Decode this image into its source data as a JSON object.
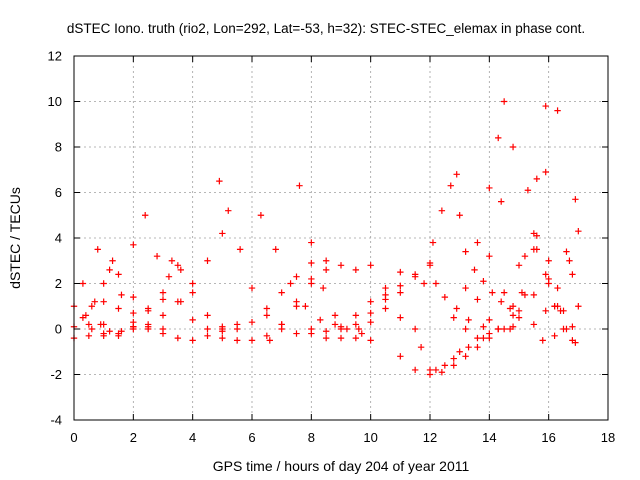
{
  "chart_data": {
    "type": "scatter",
    "title": "dSTEC Iono. truth (rio2, Lon=292, Lat=-53, h=32): STEC-STEC_elemax in phase cont.",
    "xlabel": "GPS time / hours of day 204 of year 2011",
    "ylabel": "dSTEC  / TECUs",
    "xlim": [
      0,
      18
    ],
    "ylim": [
      -4,
      12
    ],
    "xticks": [
      0,
      2,
      4,
      6,
      8,
      10,
      12,
      14,
      16,
      18
    ],
    "yticks": [
      -4,
      -2,
      0,
      2,
      4,
      6,
      8,
      10,
      12
    ],
    "xtick_labels": [
      "0",
      "2",
      "4",
      "6",
      "8",
      "10",
      "12",
      "14",
      "16",
      "18"
    ],
    "ytick_labels": [
      "-4",
      "-2",
      "0",
      "2",
      "4",
      "6",
      "8",
      "10",
      "12"
    ],
    "grid": true,
    "legend": "none",
    "marker": "+",
    "color": "#ff0000",
    "series": [
      {
        "x": [
          0.0,
          0.5,
          1.0,
          1.5,
          2.0
        ],
        "y": [
          -0.4,
          -0.3,
          0.2,
          0.9,
          1.4
        ]
      },
      {
        "x": [
          0.0,
          0.3,
          0.6,
          1.0,
          1.5,
          2.0,
          2.5,
          3.0
        ],
        "y": [
          1.0,
          0.5,
          0.0,
          -0.3,
          -0.2,
          0.3,
          0.9,
          1.3
        ]
      },
      {
        "x": [
          0.3,
          0.6,
          0.9,
          1.2,
          1.6,
          2.0
        ],
        "y": [
          2.0,
          1.0,
          0.2,
          -0.1,
          -0.1,
          0.1
        ]
      },
      {
        "x": [
          0.0,
          0.4,
          0.7,
          1.0,
          1.3
        ],
        "y": [
          0.1,
          0.6,
          1.2,
          2.0,
          3.0
        ]
      },
      {
        "x": [
          0.8,
          1.2,
          1.6,
          2.0,
          2.5,
          3.0
        ],
        "y": [
          3.5,
          2.6,
          1.5,
          0.7,
          0.1,
          0.0
        ]
      },
      {
        "x": [
          0.5,
          1.0,
          1.5,
          2.0,
          2.4
        ],
        "y": [
          0.2,
          1.2,
          2.4,
          3.7,
          5.0
        ]
      },
      {
        "x": [
          1.0,
          1.5,
          2.0,
          2.5,
          3.0,
          3.5
        ],
        "y": [
          -0.2,
          -0.3,
          0.1,
          0.8,
          1.6,
          2.8
        ]
      },
      {
        "x": [
          2.8,
          3.2,
          3.6,
          4.0,
          4.5,
          5.0
        ],
        "y": [
          3.2,
          2.3,
          1.2,
          0.4,
          0.0,
          0.1
        ]
      },
      {
        "x": [
          2.5,
          3.0,
          3.5,
          4.0,
          4.5,
          5.0,
          5.5
        ],
        "y": [
          0.0,
          -0.2,
          -0.4,
          -0.5,
          -0.3,
          -0.1,
          0.2
        ]
      },
      {
        "x": [
          2.0,
          2.5,
          3.0,
          3.5,
          4.0,
          4.5,
          5.0
        ],
        "y": [
          0.0,
          0.2,
          0.6,
          1.2,
          2.0,
          3.0,
          4.2
        ]
      },
      {
        "x": [
          3.3,
          3.6,
          4.0,
          4.5,
          5.0
        ],
        "y": [
          3.0,
          2.6,
          1.6,
          0.6,
          0.0
        ]
      },
      {
        "x": [
          4.9,
          5.2,
          5.6,
          6.0,
          6.5,
          7.0,
          7.5
        ],
        "y": [
          6.5,
          5.2,
          3.5,
          1.8,
          0.6,
          0.0,
          -0.2
        ]
      },
      {
        "x": [
          5.0,
          5.5,
          6.0,
          6.5,
          7.0,
          7.5,
          8.0
        ],
        "y": [
          -0.4,
          -0.5,
          -0.5,
          -0.3,
          0.2,
          1.0,
          2.0
        ]
      },
      {
        "x": [
          5.5,
          6.0,
          6.5,
          7.0,
          7.5,
          8.0,
          8.5
        ],
        "y": [
          0.0,
          0.3,
          0.9,
          1.6,
          2.3,
          2.9,
          3.0
        ]
      },
      {
        "x": [
          6.3,
          6.8,
          7.3,
          7.8,
          8.3,
          8.8
        ],
        "y": [
          5.0,
          3.5,
          2.0,
          1.0,
          0.4,
          0.2
        ]
      },
      {
        "x": [
          7.6,
          8.0,
          8.4,
          8.8,
          9.2,
          9.7
        ],
        "y": [
          6.3,
          3.8,
          1.8,
          0.6,
          0.0,
          -0.2
        ]
      },
      {
        "x": [
          6.6,
          7.0,
          7.5,
          8.0,
          8.5,
          9.0,
          9.5
        ],
        "y": [
          -0.5,
          0.2,
          1.2,
          2.2,
          2.6,
          2.8,
          2.6
        ]
      },
      {
        "x": [
          8.0,
          8.5,
          9.0,
          9.5,
          10.0
        ],
        "y": [
          -0.2,
          -0.4,
          -0.4,
          -0.4,
          -0.5
        ]
      },
      {
        "x": [
          8.0,
          8.5,
          9.0,
          9.5,
          10.0,
          10.5,
          11.0
        ],
        "y": [
          0.0,
          -0.1,
          0.1,
          0.6,
          1.2,
          1.8,
          2.5
        ]
      },
      {
        "x": [
          10.0,
          10.5,
          11.0,
          11.5
        ],
        "y": [
          2.8,
          1.5,
          0.5,
          0.0
        ]
      },
      {
        "x": [
          9.6,
          10.0,
          10.5,
          11.0,
          11.5,
          12.0
        ],
        "y": [
          0.0,
          0.3,
          0.9,
          1.6,
          2.3,
          2.9
        ]
      },
      {
        "x": [
          9.0,
          9.5,
          10.0,
          10.5,
          11.0,
          11.5,
          12.0
        ],
        "y": [
          0.0,
          0.2,
          0.7,
          1.3,
          1.9,
          2.4,
          2.8
        ]
      },
      {
        "x": [
          11.0,
          11.5,
          12.0,
          12.5,
          13.0
        ],
        "y": [
          -1.2,
          -1.8,
          -2.0,
          -1.6,
          -1.0
        ]
      },
      {
        "x": [
          11.7,
          12.0,
          12.4,
          12.8,
          13.2,
          13.6,
          14.0
        ],
        "y": [
          -0.8,
          -1.8,
          -1.9,
          -1.6,
          -1.2,
          -0.8,
          -0.4
        ]
      },
      {
        "x": [
          11.8,
          12.1,
          12.4,
          12.7,
          12.9
        ],
        "y": [
          2.0,
          3.8,
          5.2,
          6.3,
          6.8
        ]
      },
      {
        "x": [
          12.2,
          12.5,
          12.9,
          13.3,
          13.8,
          14.3,
          14.8
        ],
        "y": [
          2.0,
          1.4,
          0.9,
          0.4,
          0.1,
          0.0,
          0.1
        ]
      },
      {
        "x": [
          12.2,
          12.8,
          13.3,
          13.8,
          14.3,
          14.8,
          15.2
        ],
        "y": [
          -1.8,
          -1.3,
          -0.8,
          -0.4,
          0.0,
          0.6,
          1.5
        ]
      },
      {
        "x": [
          13.0,
          13.2,
          13.5,
          13.8,
          14.1,
          14.4,
          14.7,
          15.0
        ],
        "y": [
          5.0,
          3.4,
          2.6,
          2.1,
          1.6,
          1.2,
          0.9,
          0.8
        ]
      },
      {
        "x": [
          12.8,
          13.2,
          13.6,
          14.0,
          14.3,
          14.5
        ],
        "y": [
          0.5,
          1.8,
          3.8,
          6.2,
          8.4,
          10.0
        ]
      },
      {
        "x": [
          13.2,
          13.6,
          14.0,
          14.4,
          14.8
        ],
        "y": [
          0.0,
          1.3,
          3.2,
          5.6,
          8.0
        ]
      },
      {
        "x": [
          13.6,
          14.0,
          14.5,
          15.0,
          15.5
        ],
        "y": [
          -0.4,
          0.4,
          1.6,
          2.8,
          3.5
        ]
      },
      {
        "x": [
          14.0,
          14.5,
          15.0,
          15.5,
          16.0
        ],
        "y": [
          -0.2,
          0.0,
          0.5,
          1.5,
          3.0
        ]
      },
      {
        "x": [
          14.8,
          15.2,
          15.6,
          15.9
        ],
        "y": [
          1.0,
          3.2,
          6.6,
          9.8
        ]
      },
      {
        "x": [
          14.7,
          15.1,
          15.5,
          15.9,
          16.3
        ],
        "y": [
          0.0,
          1.6,
          4.2,
          6.9,
          9.6
        ]
      },
      {
        "x": [
          15.3,
          15.6,
          15.9,
          16.2,
          16.5,
          16.8
        ],
        "y": [
          6.1,
          4.1,
          2.4,
          1.0,
          0.0,
          -0.5
        ]
      },
      {
        "x": [
          15.6,
          16.0,
          16.4,
          16.8,
          17.0
        ],
        "y": [
          3.5,
          2.0,
          0.8,
          0.1,
          1.0
        ]
      },
      {
        "x": [
          15.8,
          16.2,
          16.6,
          16.9
        ],
        "y": [
          -0.5,
          1.0,
          3.4,
          5.7
        ]
      },
      {
        "x": [
          16.0,
          16.3,
          16.6,
          16.9
        ],
        "y": [
          2.2,
          1.0,
          0.0,
          -0.6
        ]
      },
      {
        "x": [
          16.2,
          16.5,
          16.8,
          17.0
        ],
        "y": [
          -0.3,
          0.8,
          2.4,
          4.3
        ]
      },
      {
        "x": [
          15.5,
          15.9,
          16.3,
          16.7
        ],
        "y": [
          0.2,
          0.8,
          1.8,
          3.0
        ]
      }
    ]
  }
}
